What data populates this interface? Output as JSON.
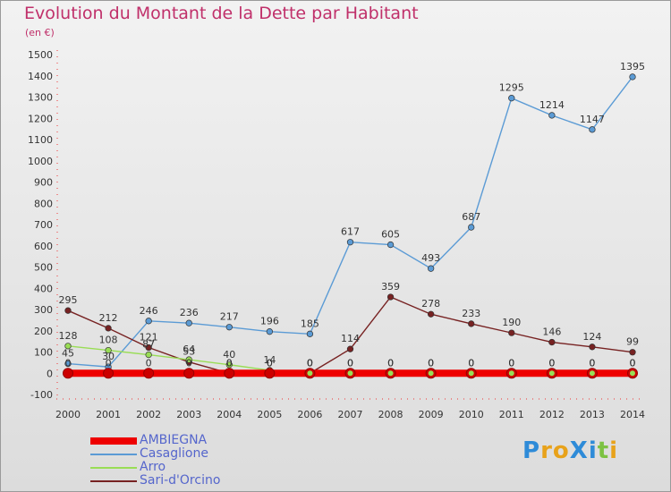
{
  "title": "Evolution du Montant de la Dette par Habitant",
  "unit": "(en €)",
  "logo": "ProXiti",
  "chart_data": {
    "type": "line",
    "x": [
      "2000",
      "2001",
      "2002",
      "2003",
      "2004",
      "2005",
      "2006",
      "2007",
      "2008",
      "2009",
      "2010",
      "2011",
      "2012",
      "2013",
      "2014"
    ],
    "ylim": [
      -100,
      1500
    ],
    "yticks": [
      -100,
      0,
      100,
      200,
      300,
      400,
      500,
      600,
      700,
      800,
      900,
      1000,
      1100,
      1200,
      1300,
      1400,
      1500
    ],
    "grid": false,
    "legend_position": "bottom-left",
    "series": [
      {
        "name": "AMBIEGNA",
        "color": "#ee0000",
        "values": [
          0,
          0,
          0,
          0,
          0,
          0,
          0,
          0,
          0,
          0,
          0,
          0,
          0,
          0,
          0
        ],
        "labels": [
          "0",
          "0",
          "0",
          "0",
          "0",
          "0",
          "0",
          "0",
          "0",
          "0",
          "0",
          "0",
          "0",
          "0",
          "0"
        ]
      },
      {
        "name": "Casaglione",
        "color": "#5b9bd5",
        "values": [
          45,
          30,
          246,
          236,
          217,
          196,
          185,
          617,
          605,
          493,
          687,
          1295,
          1214,
          1147,
          1395
        ],
        "labels": [
          "45",
          "30",
          "246",
          "236",
          "217",
          "196",
          "185",
          "617",
          "605",
          "493",
          "687",
          "1295",
          "1214",
          "1147",
          "1395"
        ]
      },
      {
        "name": "Arro",
        "color": "#99dd55",
        "values": [
          128,
          108,
          87,
          64,
          40,
          14,
          0,
          0,
          0,
          0,
          0,
          0,
          0,
          0,
          0
        ],
        "labels": [
          "128",
          "108",
          "87",
          "64",
          "40",
          "14",
          "0",
          "0",
          "0",
          "0",
          "0",
          "0",
          "0",
          "0",
          "0"
        ]
      },
      {
        "name": "Sari-d'Orcino",
        "color": "#772222",
        "values": [
          295,
          212,
          121,
          53,
          0,
          0,
          0,
          114,
          359,
          278,
          233,
          190,
          146,
          124,
          99
        ],
        "labels": [
          "295",
          "212",
          "121",
          "53",
          "0",
          "0",
          "0",
          "114",
          "359",
          "278",
          "233",
          "190",
          "146",
          "124",
          "99"
        ]
      }
    ]
  }
}
